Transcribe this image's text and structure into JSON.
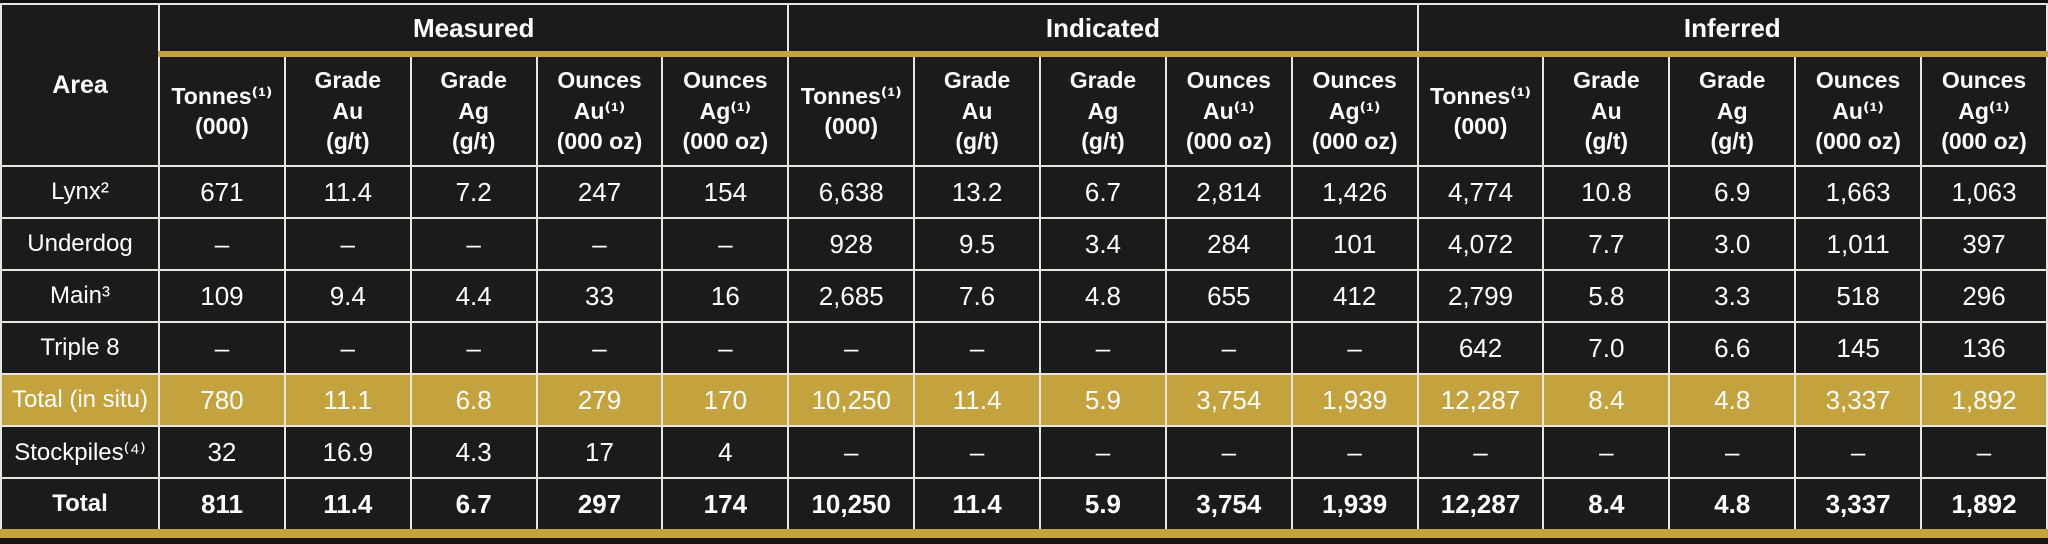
{
  "colors": {
    "gold_accent": "#c4a33e",
    "cell_background": "#1d1b19",
    "border_light": "#e8e6e2",
    "text": "#ffffff"
  },
  "header": {
    "area_label": "Area",
    "groups": [
      "Measured",
      "Indicated",
      "Inferred"
    ],
    "sub_columns": [
      {
        "lines": [
          "Tonnes⁽¹⁾",
          "(000)"
        ]
      },
      {
        "lines": [
          "Grade",
          "Au",
          "(g/t)"
        ]
      },
      {
        "lines": [
          "Grade",
          "Ag",
          "(g/t)"
        ]
      },
      {
        "lines": [
          "Ounces",
          "Au⁽¹⁾",
          "(000 oz)"
        ]
      },
      {
        "lines": [
          "Ounces",
          "Ag⁽¹⁾",
          "(000 oz)"
        ]
      }
    ]
  },
  "rows": [
    {
      "label": "Lynx²",
      "values": [
        "671",
        "11.4",
        "7.2",
        "247",
        "154",
        "6,638",
        "13.2",
        "6.7",
        "2,814",
        "1,426",
        "4,774",
        "10.8",
        "6.9",
        "1,663",
        "1,063"
      ]
    },
    {
      "label": "Underdog",
      "values": [
        "–",
        "–",
        "–",
        "–",
        "–",
        "928",
        "9.5",
        "3.4",
        "284",
        "101",
        "4,072",
        "7.7",
        "3.0",
        "1,011",
        "397"
      ]
    },
    {
      "label": "Main³",
      "values": [
        "109",
        "9.4",
        "4.4",
        "33",
        "16",
        "2,685",
        "7.6",
        "4.8",
        "655",
        "412",
        "2,799",
        "5.8",
        "3.3",
        "518",
        "296"
      ]
    },
    {
      "label": "Triple 8",
      "values": [
        "–",
        "–",
        "–",
        "–",
        "–",
        "–",
        "–",
        "–",
        "–",
        "–",
        "642",
        "7.0",
        "6.6",
        "145",
        "136"
      ]
    },
    {
      "label": "Total (in situ)",
      "highlight": true,
      "values": [
        "780",
        "11.1",
        "6.8",
        "279",
        "170",
        "10,250",
        "11.4",
        "5.9",
        "3,754",
        "1,939",
        "12,287",
        "8.4",
        "4.8",
        "3,337",
        "1,892"
      ]
    },
    {
      "label": "Stockpiles⁽⁴⁾",
      "values": [
        "32",
        "16.9",
        "4.3",
        "17",
        "4",
        "–",
        "–",
        "–",
        "–",
        "–",
        "–",
        "–",
        "–",
        "–",
        "–"
      ]
    },
    {
      "label": "Total",
      "bold": true,
      "values": [
        "811",
        "11.4",
        "6.7",
        "297",
        "174",
        "10,250",
        "11.4",
        "5.9",
        "3,754",
        "1,939",
        "12,287",
        "8.4",
        "4.8",
        "3,337",
        "1,892"
      ]
    }
  ]
}
